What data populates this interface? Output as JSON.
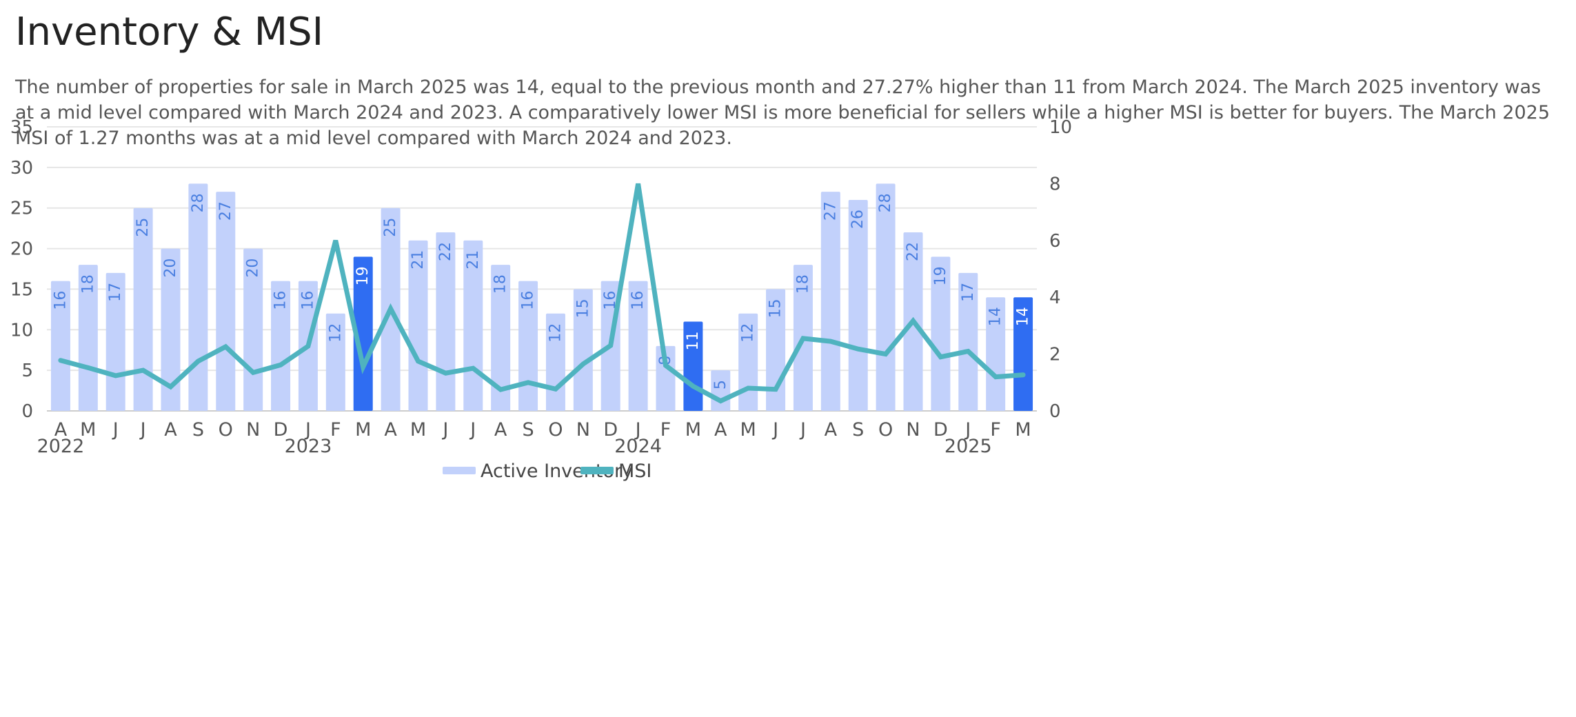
{
  "page": {
    "title": "Inventory & MSI",
    "description": "The number of properties for sale in March 2025 was 14, equal to the previous month and 27.27% higher than 11 from March 2024. The March 2025 inventory was at a mid level compared with March 2024 and 2023. A comparatively lower MSI is more beneficial for sellers while a higher MSI is better for buyers. The March 2025 MSI of 1.27 months was at a mid level compared with March 2024 and 2023."
  },
  "colors": {
    "bar": "#c2d1fb",
    "bar_highlight": "#2f6df2",
    "bar_label": "#4a7fe0",
    "bar_label_highlight": "#ffffff",
    "line": "#4fb3bf",
    "grid": "#e6e6e6"
  },
  "chart_data": {
    "type": "bar",
    "title": "Inventory & MSI",
    "categories": [
      "A",
      "M",
      "J",
      "J",
      "A",
      "S",
      "O",
      "N",
      "D",
      "J",
      "F",
      "M",
      "A",
      "M",
      "J",
      "J",
      "A",
      "S",
      "O",
      "N",
      "D",
      "J",
      "F",
      "M",
      "A",
      "M",
      "J",
      "J",
      "A",
      "S",
      "O",
      "N",
      "D",
      "J",
      "F",
      "M"
    ],
    "year_labels": [
      {
        "index": 0,
        "label": "2022"
      },
      {
        "index": 9,
        "label": "2023"
      },
      {
        "index": 21,
        "label": "2024"
      },
      {
        "index": 33,
        "label": "2025"
      }
    ],
    "highlight_indices": [
      11,
      23,
      35
    ],
    "series": [
      {
        "name": "Active Inventory",
        "type": "bar",
        "axis": "left",
        "values": [
          16,
          18,
          17,
          25,
          20,
          28,
          27,
          20,
          16,
          16,
          12,
          19,
          25,
          21,
          22,
          21,
          18,
          16,
          12,
          15,
          16,
          16,
          8,
          11,
          5,
          12,
          15,
          18,
          27,
          26,
          28,
          22,
          19,
          17,
          14,
          14
        ]
      },
      {
        "name": "MSI",
        "type": "line",
        "axis": "right",
        "values": [
          1.78,
          1.52,
          1.24,
          1.43,
          0.85,
          1.75,
          2.26,
          1.35,
          1.62,
          2.28,
          6.0,
          1.55,
          3.6,
          1.75,
          1.33,
          1.5,
          0.75,
          1.0,
          0.77,
          1.65,
          2.3,
          8.0,
          1.6,
          0.87,
          0.35,
          0.8,
          0.76,
          2.55,
          2.45,
          2.18,
          2.0,
          3.17,
          1.9,
          2.1,
          1.2,
          1.27
        ]
      }
    ],
    "y_left": {
      "min": 0,
      "max": 35,
      "ticks": [
        0,
        5,
        10,
        15,
        20,
        25,
        30,
        35
      ]
    },
    "y_right": {
      "min": 0,
      "max": 10,
      "ticks": [
        0,
        2,
        4,
        6,
        8,
        10
      ]
    },
    "legend": {
      "placement": "bottom-center",
      "items": [
        "Active Inventory",
        "MSI"
      ]
    }
  }
}
